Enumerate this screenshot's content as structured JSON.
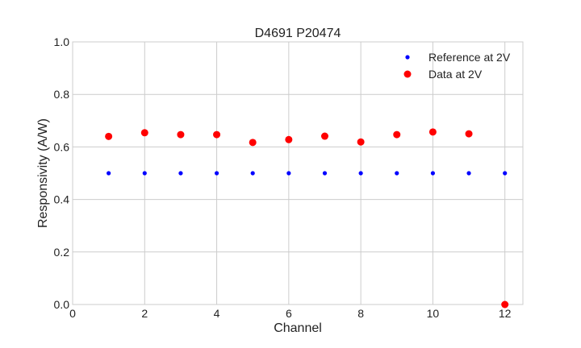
{
  "chart_data": {
    "type": "scatter",
    "title": "D4691 P20474",
    "xlabel": "Channel",
    "ylabel": "Responsivity (A/W)",
    "xlim": [
      0,
      12.5
    ],
    "ylim": [
      0,
      1.0
    ],
    "xticks": [
      0,
      2,
      4,
      6,
      8,
      10,
      12
    ],
    "yticks": [
      0.0,
      0.2,
      0.4,
      0.6,
      0.8,
      1.0
    ],
    "xtick_labels": [
      "0",
      "2",
      "4",
      "6",
      "8",
      "10",
      "12"
    ],
    "ytick_labels": [
      "0.0",
      "0.2",
      "0.4",
      "0.6",
      "0.8",
      "1.0"
    ],
    "grid": true,
    "legend_position": "top-right",
    "series": [
      {
        "name": "Reference at 2V",
        "color": "#0000ff",
        "marker": "small-dot",
        "x": [
          1,
          2,
          3,
          4,
          5,
          6,
          7,
          8,
          9,
          10,
          11,
          12
        ],
        "y": [
          0.5,
          0.5,
          0.5,
          0.5,
          0.5,
          0.5,
          0.5,
          0.5,
          0.5,
          0.5,
          0.5,
          0.5
        ]
      },
      {
        "name": "Data at 2V",
        "color": "#ff0000",
        "marker": "large-dot",
        "x": [
          1,
          2,
          3,
          4,
          5,
          6,
          7,
          8,
          9,
          10,
          11,
          12
        ],
        "y": [
          0.64,
          0.654,
          0.647,
          0.647,
          0.617,
          0.628,
          0.641,
          0.619,
          0.647,
          0.657,
          0.65,
          0.0
        ]
      }
    ]
  }
}
